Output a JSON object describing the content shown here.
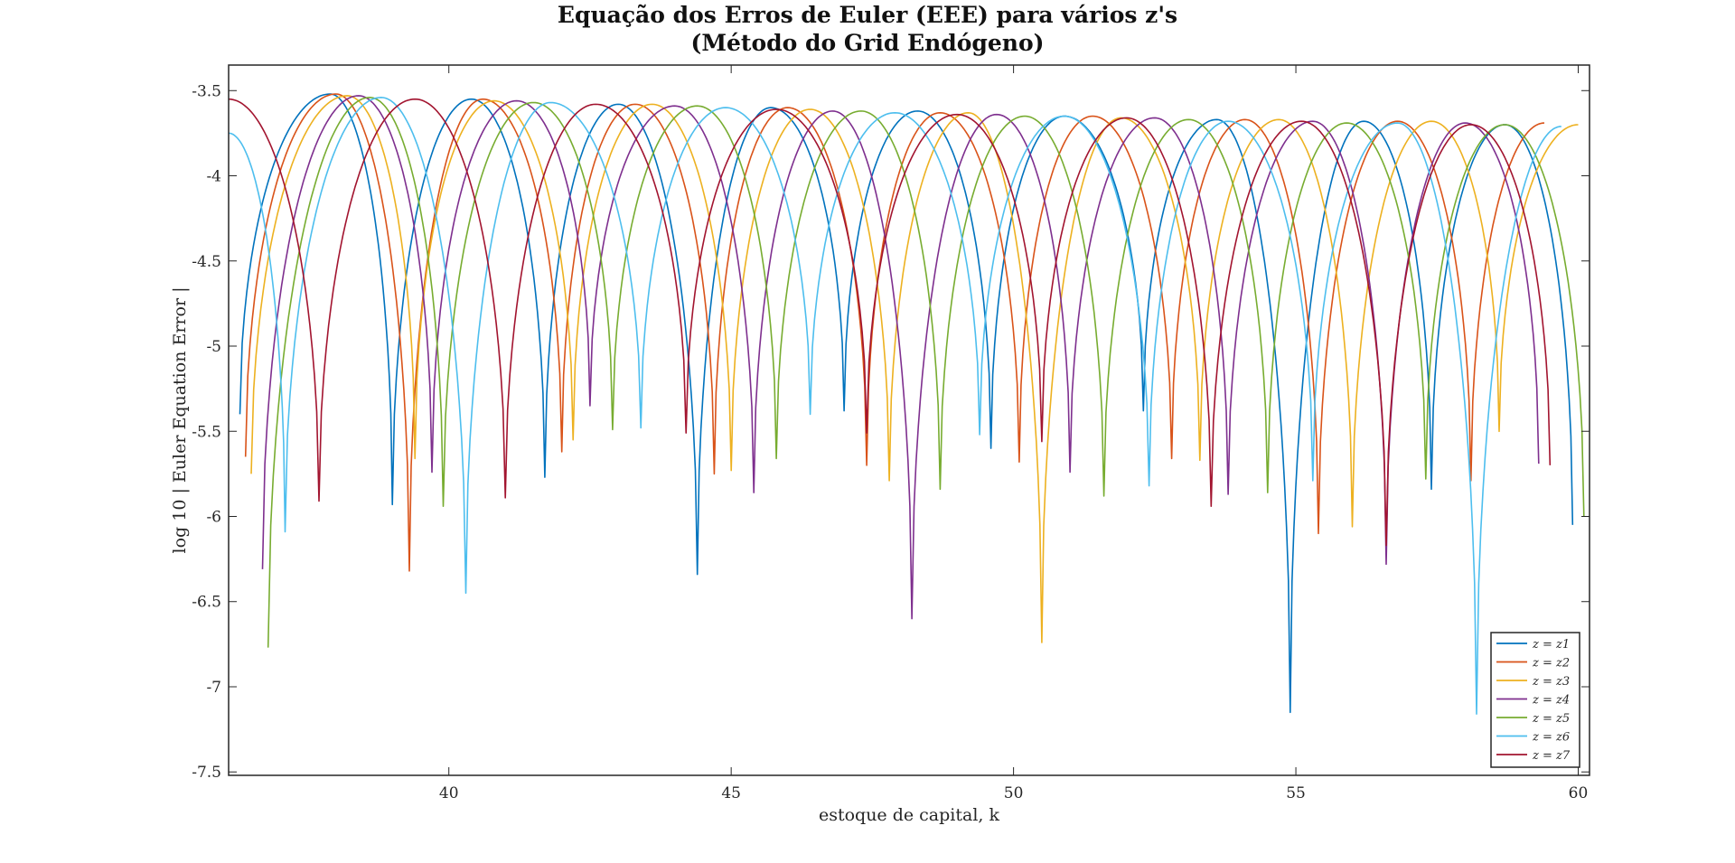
{
  "chart_data": {
    "type": "line",
    "title_line1": "Equação dos Erros de Euler (EEE) para vários z's",
    "title_line2": "(Método do Grid Endógeno)",
    "xlabel": "estoque de capital, k",
    "ylabel": "log 10 | Euler Equation Error |",
    "xlim": [
      36.1,
      60.2
    ],
    "ylim": [
      -7.52,
      -3.35
    ],
    "xticks": [
      "40",
      "45",
      "50",
      "55",
      "60"
    ],
    "yticks": [
      "-3.5",
      "-4",
      "-4.5",
      "-5",
      "-5.5",
      "-6",
      "-6.5",
      "-7",
      "-7.5"
    ],
    "legend_position": "bottom-right",
    "legend_entries": [
      "z = z1",
      "z = z2",
      "z = z3",
      "z = z4",
      "z = z5",
      "z = z6",
      "z = z7"
    ],
    "series": [
      {
        "name": "z = z1",
        "color": "#0072BD",
        "minima": [
          {
            "x": 36.3,
            "y": -5.4
          },
          {
            "x": 39.0,
            "y": -5.93
          },
          {
            "x": 41.7,
            "y": -5.77
          },
          {
            "x": 44.4,
            "y": -6.34
          },
          {
            "x": 47.0,
            "y": -5.38
          },
          {
            "x": 49.6,
            "y": -5.6
          },
          {
            "x": 52.3,
            "y": -5.38
          },
          {
            "x": 54.9,
            "y": -7.15
          },
          {
            "x": 57.4,
            "y": -5.84
          },
          {
            "x": 59.9,
            "y": -6.05
          }
        ],
        "maxima": [
          {
            "x": 37.9,
            "y": -3.52
          },
          {
            "x": 40.4,
            "y": -3.55
          },
          {
            "x": 43.0,
            "y": -3.58
          },
          {
            "x": 45.7,
            "y": -3.6
          },
          {
            "x": 48.3,
            "y": -3.62
          },
          {
            "x": 50.9,
            "y": -3.65
          },
          {
            "x": 53.6,
            "y": -3.67
          },
          {
            "x": 56.2,
            "y": -3.68
          },
          {
            "x": 58.7,
            "y": -3.7
          }
        ]
      },
      {
        "name": "z = z2",
        "color": "#D95319",
        "minima": [
          {
            "x": 36.4,
            "y": -5.65
          },
          {
            "x": 39.3,
            "y": -6.32
          },
          {
            "x": 42.0,
            "y": -5.62
          },
          {
            "x": 44.7,
            "y": -5.75
          },
          {
            "x": 47.4,
            "y": -5.7
          },
          {
            "x": 50.1,
            "y": -5.68
          },
          {
            "x": 52.8,
            "y": -5.66
          },
          {
            "x": 55.4,
            "y": -6.1
          },
          {
            "x": 58.1,
            "y": -5.79
          }
        ],
        "maxima": [
          {
            "x": 38.0,
            "y": -3.52
          },
          {
            "x": 40.6,
            "y": -3.55
          },
          {
            "x": 43.3,
            "y": -3.58
          },
          {
            "x": 46.0,
            "y": -3.6
          },
          {
            "x": 48.7,
            "y": -3.63
          },
          {
            "x": 51.4,
            "y": -3.65
          },
          {
            "x": 54.1,
            "y": -3.67
          },
          {
            "x": 56.8,
            "y": -3.68
          },
          {
            "x": 59.4,
            "y": -3.69
          }
        ]
      },
      {
        "name": "z = z3",
        "color": "#EDB120",
        "minima": [
          {
            "x": 36.5,
            "y": -5.75
          },
          {
            "x": 39.4,
            "y": -5.66
          },
          {
            "x": 42.2,
            "y": -5.55
          },
          {
            "x": 45.0,
            "y": -5.73
          },
          {
            "x": 47.8,
            "y": -5.79
          },
          {
            "x": 50.5,
            "y": -6.74
          },
          {
            "x": 53.3,
            "y": -5.67
          },
          {
            "x": 56.0,
            "y": -6.06
          },
          {
            "x": 58.6,
            "y": -5.5
          }
        ],
        "maxima": [
          {
            "x": 38.2,
            "y": -3.53
          },
          {
            "x": 40.8,
            "y": -3.56
          },
          {
            "x": 43.6,
            "y": -3.58
          },
          {
            "x": 46.4,
            "y": -3.61
          },
          {
            "x": 49.2,
            "y": -3.63
          },
          {
            "x": 51.9,
            "y": -3.66
          },
          {
            "x": 54.7,
            "y": -3.67
          },
          {
            "x": 57.4,
            "y": -3.68
          },
          {
            "x": 60.0,
            "y": -3.7
          }
        ]
      },
      {
        "name": "z = z4",
        "color": "#7E2F8E",
        "minima": [
          {
            "x": 36.7,
            "y": -6.31
          },
          {
            "x": 39.7,
            "y": -5.74
          },
          {
            "x": 42.5,
            "y": -5.35
          },
          {
            "x": 45.4,
            "y": -5.86
          },
          {
            "x": 48.2,
            "y": -6.6
          },
          {
            "x": 51.0,
            "y": -5.74
          },
          {
            "x": 53.8,
            "y": -5.87
          },
          {
            "x": 56.6,
            "y": -6.28
          },
          {
            "x": 59.3,
            "y": -5.69
          }
        ],
        "maxima": [
          {
            "x": 38.4,
            "y": -3.53
          },
          {
            "x": 41.2,
            "y": -3.56
          },
          {
            "x": 44.0,
            "y": -3.59
          },
          {
            "x": 46.8,
            "y": -3.62
          },
          {
            "x": 49.7,
            "y": -3.64
          },
          {
            "x": 52.5,
            "y": -3.66
          },
          {
            "x": 55.3,
            "y": -3.68
          },
          {
            "x": 58.0,
            "y": -3.69
          }
        ]
      },
      {
        "name": "z = z5",
        "color": "#77AC30",
        "minima": [
          {
            "x": 36.8,
            "y": -6.77
          },
          {
            "x": 39.9,
            "y": -5.94
          },
          {
            "x": 42.9,
            "y": -5.49
          },
          {
            "x": 45.8,
            "y": -5.66
          },
          {
            "x": 48.7,
            "y": -5.84
          },
          {
            "x": 51.6,
            "y": -5.88
          },
          {
            "x": 54.5,
            "y": -5.86
          },
          {
            "x": 57.3,
            "y": -5.78
          },
          {
            "x": 60.1,
            "y": -6.0
          }
        ],
        "maxima": [
          {
            "x": 38.6,
            "y": -3.54
          },
          {
            "x": 41.5,
            "y": -3.57
          },
          {
            "x": 44.4,
            "y": -3.59
          },
          {
            "x": 47.3,
            "y": -3.62
          },
          {
            "x": 50.2,
            "y": -3.65
          },
          {
            "x": 53.1,
            "y": -3.67
          },
          {
            "x": 55.9,
            "y": -3.69
          },
          {
            "x": 58.7,
            "y": -3.7
          }
        ]
      },
      {
        "name": "z = z6",
        "color": "#4DBEEE",
        "minima": [
          {
            "x": 37.1,
            "y": -6.09
          },
          {
            "x": 40.3,
            "y": -6.45
          },
          {
            "x": 43.4,
            "y": -5.48
          },
          {
            "x": 46.4,
            "y": -5.4
          },
          {
            "x": 49.4,
            "y": -5.52
          },
          {
            "x": 52.4,
            "y": -5.82
          },
          {
            "x": 55.3,
            "y": -5.79
          },
          {
            "x": 58.2,
            "y": -7.16
          }
        ],
        "maxima": [
          {
            "x": 36.1,
            "y": -3.75
          },
          {
            "x": 38.8,
            "y": -3.54
          },
          {
            "x": 41.8,
            "y": -3.57
          },
          {
            "x": 44.9,
            "y": -3.6
          },
          {
            "x": 47.9,
            "y": -3.63
          },
          {
            "x": 50.9,
            "y": -3.65
          },
          {
            "x": 53.8,
            "y": -3.68
          },
          {
            "x": 56.8,
            "y": -3.69
          },
          {
            "x": 59.7,
            "y": -3.71
          }
        ]
      },
      {
        "name": "z = z7",
        "color": "#A2142F",
        "minima": [
          {
            "x": 37.7,
            "y": -5.91
          },
          {
            "x": 41.0,
            "y": -5.89
          },
          {
            "x": 44.2,
            "y": -5.51
          },
          {
            "x": 47.4,
            "y": -5.51
          },
          {
            "x": 50.5,
            "y": -5.56
          },
          {
            "x": 53.5,
            "y": -5.94
          },
          {
            "x": 56.6,
            "y": -6.17
          },
          {
            "x": 59.5,
            "y": -5.7
          }
        ],
        "maxima": [
          {
            "x": 36.1,
            "y": -3.55
          },
          {
            "x": 39.4,
            "y": -3.55
          },
          {
            "x": 42.6,
            "y": -3.58
          },
          {
            "x": 45.8,
            "y": -3.61
          },
          {
            "x": 49.0,
            "y": -3.64
          },
          {
            "x": 52.0,
            "y": -3.66
          },
          {
            "x": 55.1,
            "y": -3.68
          },
          {
            "x": 58.1,
            "y": -3.7
          }
        ]
      }
    ]
  }
}
